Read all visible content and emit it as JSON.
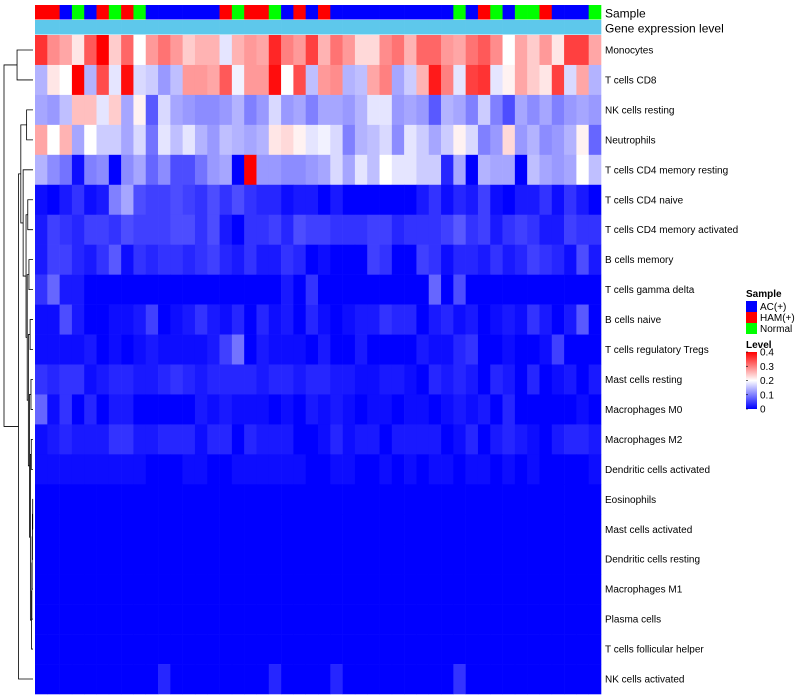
{
  "chart_data": {
    "type": "heatmap",
    "title": "",
    "annotation_tracks": [
      {
        "name": "Sample",
        "label": "Sample"
      },
      {
        "name": "Gene expression level",
        "label": "Gene expression level"
      }
    ],
    "sample_groups": [
      "H",
      "H",
      "A",
      "N",
      "A",
      "H",
      "N",
      "H",
      "N",
      "A",
      "A",
      "A",
      "A",
      "A",
      "A",
      "H",
      "N",
      "H",
      "H",
      "N",
      "A",
      "H",
      "A",
      "H",
      "A",
      "A",
      "A",
      "A",
      "A",
      "A",
      "A",
      "A",
      "A",
      "A",
      "N",
      "A",
      "H",
      "N",
      "A",
      "N",
      "N",
      "H",
      "A",
      "A",
      "A",
      "N"
    ],
    "group_colors": {
      "A": "#0000ff",
      "H": "#ff0000",
      "N": "#00ff00"
    },
    "gene_expression_color": "#5ec8eb",
    "rows": [
      "Monocytes",
      "T cells CD8",
      "NK cells resting",
      "Neutrophils",
      "T cells CD4 memory resting",
      "T cells CD4 naive",
      "T cells CD4 memory activated",
      "B cells memory",
      "T cells gamma delta",
      "B cells naive",
      "T cells regulatory  Tregs",
      "Mast cells resting",
      "Macrophages M0",
      "Macrophages M2",
      "Dendritic cells activated",
      "Eosinophils",
      "Mast cells activated",
      "Dendritic cells resting",
      "Macrophages M1",
      "Plasma cells",
      "T cells follicular helper",
      "NK cells activated"
    ],
    "values": [
      [
        0.36,
        0.29,
        0.27,
        0.22,
        0.33,
        0.4,
        0.24,
        0.32,
        0.2,
        0.28,
        0.31,
        0.28,
        0.24,
        0.26,
        0.26,
        0.18,
        0.26,
        0.28,
        0.27,
        0.37,
        0.3,
        0.28,
        0.35,
        0.26,
        0.31,
        0.28,
        0.23,
        0.23,
        0.29,
        0.31,
        0.26,
        0.32,
        0.32,
        0.28,
        0.27,
        0.31,
        0.33,
        0.29,
        0.2,
        0.27,
        0.24,
        0.28,
        0.22,
        0.35,
        0.35,
        0.27
      ],
      [
        0.14,
        0.22,
        0.2,
        0.4,
        0.14,
        0.34,
        0.18,
        0.39,
        0.17,
        0.16,
        0.12,
        0.15,
        0.28,
        0.28,
        0.27,
        0.33,
        0.19,
        0.28,
        0.28,
        0.39,
        0.2,
        0.34,
        0.15,
        0.28,
        0.29,
        0.14,
        0.15,
        0.27,
        0.3,
        0.13,
        0.16,
        0.26,
        0.38,
        0.3,
        0.18,
        0.35,
        0.36,
        0.18,
        0.21,
        0.27,
        0.24,
        0.22,
        0.35,
        0.17,
        0.27,
        0.14
      ],
      [
        0.13,
        0.12,
        0.15,
        0.25,
        0.25,
        0.18,
        0.24,
        0.13,
        0.21,
        0.07,
        0.17,
        0.13,
        0.12,
        0.11,
        0.11,
        0.12,
        0.14,
        0.1,
        0.12,
        0.17,
        0.12,
        0.13,
        0.1,
        0.13,
        0.13,
        0.12,
        0.14,
        0.18,
        0.18,
        0.12,
        0.13,
        0.12,
        0.07,
        0.14,
        0.13,
        0.1,
        0.16,
        0.1,
        0.06,
        0.13,
        0.11,
        0.13,
        0.1,
        0.12,
        0.13,
        0.12
      ],
      [
        0.27,
        0.2,
        0.26,
        0.13,
        0.2,
        0.16,
        0.16,
        0.13,
        0.17,
        0.09,
        0.18,
        0.15,
        0.18,
        0.14,
        0.12,
        0.15,
        0.14,
        0.13,
        0.14,
        0.22,
        0.23,
        0.21,
        0.18,
        0.19,
        0.17,
        0.1,
        0.14,
        0.15,
        0.17,
        0.11,
        0.18,
        0.16,
        0.13,
        0.16,
        0.21,
        0.17,
        0.1,
        0.12,
        0.23,
        0.12,
        0.14,
        0.11,
        0.12,
        0.14,
        0.21,
        0.08
      ],
      [
        0.14,
        0.11,
        0.09,
        0.01,
        0.1,
        0.11,
        0.0,
        0.11,
        0.13,
        0.08,
        0.11,
        0.06,
        0.06,
        0.09,
        0.12,
        0.13,
        0.0,
        0.41,
        0.12,
        0.12,
        0.11,
        0.11,
        0.12,
        0.13,
        0.17,
        0.13,
        0.18,
        0.15,
        0.2,
        0.18,
        0.18,
        0.16,
        0.16,
        0.03,
        0.13,
        0.0,
        0.14,
        0.13,
        0.13,
        0.0,
        0.15,
        0.13,
        0.12,
        0.13,
        0.2,
        0.15
      ],
      [
        0.01,
        0.0,
        0.02,
        0.04,
        0.01,
        0.02,
        0.1,
        0.13,
        0.06,
        0.05,
        0.05,
        0.06,
        0.05,
        0.04,
        0.06,
        0.04,
        0.06,
        0.04,
        0.03,
        0.03,
        0.01,
        0.02,
        0.02,
        0.0,
        0.02,
        0.0,
        0.0,
        0.0,
        0.0,
        0.0,
        0.0,
        0.02,
        0.04,
        0.01,
        0.03,
        0.02,
        0.05,
        0.01,
        0.0,
        0.02,
        0.02,
        0.04,
        0.01,
        0.04,
        0.02,
        0.0
      ],
      [
        0.02,
        0.05,
        0.04,
        0.03,
        0.05,
        0.05,
        0.04,
        0.06,
        0.05,
        0.05,
        0.05,
        0.06,
        0.06,
        0.04,
        0.06,
        0.02,
        0.0,
        0.04,
        0.04,
        0.05,
        0.03,
        0.06,
        0.05,
        0.05,
        0.04,
        0.04,
        0.04,
        0.05,
        0.05,
        0.03,
        0.04,
        0.04,
        0.04,
        0.05,
        0.07,
        0.04,
        0.05,
        0.02,
        0.04,
        0.05,
        0.04,
        0.02,
        0.02,
        0.05,
        0.04,
        0.04
      ],
      [
        0.02,
        0.05,
        0.05,
        0.03,
        0.02,
        0.04,
        0.07,
        0.01,
        0.04,
        0.03,
        0.04,
        0.04,
        0.03,
        0.04,
        0.05,
        0.03,
        0.02,
        0.04,
        0.02,
        0.02,
        0.04,
        0.03,
        0.0,
        0.01,
        0.0,
        0.0,
        0.0,
        0.05,
        0.04,
        0.0,
        0.0,
        0.05,
        0.04,
        0.01,
        0.03,
        0.03,
        0.02,
        0.04,
        0.02,
        0.03,
        0.05,
        0.04,
        0.03,
        0.01,
        0.06,
        0.02
      ],
      [
        0.04,
        0.08,
        0.02,
        0.02,
        0.0,
        0.0,
        0.0,
        0.0,
        0.0,
        0.0,
        0.0,
        0.0,
        0.0,
        0.0,
        0.0,
        0.0,
        0.0,
        0.0,
        0.0,
        0.0,
        0.02,
        0.0,
        0.04,
        0.0,
        0.0,
        0.0,
        0.0,
        0.0,
        0.0,
        0.0,
        0.0,
        0.0,
        0.08,
        0.0,
        0.06,
        0.0,
        0.0,
        0.0,
        0.0,
        0.0,
        0.0,
        0.0,
        0.0,
        0.0,
        0.0,
        0.0
      ],
      [
        0.01,
        0.01,
        0.06,
        0.02,
        0.0,
        0.0,
        0.01,
        0.01,
        0.02,
        0.05,
        0.0,
        0.01,
        0.02,
        0.04,
        0.02,
        0.01,
        0.03,
        0.0,
        0.03,
        0.01,
        0.02,
        0.0,
        0.03,
        0.01,
        0.0,
        0.01,
        0.02,
        0.02,
        0.04,
        0.03,
        0.03,
        0.0,
        0.02,
        0.03,
        0.01,
        0.02,
        0.0,
        0.01,
        0.02,
        0.01,
        0.04,
        0.02,
        0.0,
        0.02,
        0.07,
        0.0
      ],
      [
        0.01,
        0.01,
        0.01,
        0.01,
        0.02,
        0.0,
        0.01,
        0.0,
        0.01,
        0.02,
        0.01,
        0.01,
        0.01,
        0.01,
        0.02,
        0.05,
        0.09,
        0.0,
        0.02,
        0.01,
        0.01,
        0.01,
        0.0,
        0.02,
        0.0,
        0.0,
        0.02,
        0.0,
        0.0,
        0.0,
        0.0,
        0.02,
        0.01,
        0.01,
        0.03,
        0.04,
        0.0,
        0.0,
        0.01,
        0.0,
        0.0,
        0.01,
        0.05,
        0.0,
        0.0,
        0.0
      ],
      [
        0.04,
        0.03,
        0.04,
        0.04,
        0.01,
        0.02,
        0.03,
        0.03,
        0.02,
        0.02,
        0.03,
        0.04,
        0.03,
        0.02,
        0.03,
        0.03,
        0.03,
        0.03,
        0.02,
        0.03,
        0.03,
        0.02,
        0.03,
        0.03,
        0.02,
        0.02,
        0.01,
        0.01,
        0.02,
        0.02,
        0.01,
        0.0,
        0.03,
        0.02,
        0.03,
        0.02,
        0.0,
        0.03,
        0.02,
        0.0,
        0.03,
        0.0,
        0.01,
        0.02,
        0.0,
        0.02
      ],
      [
        0.08,
        0.01,
        0.04,
        0.0,
        0.03,
        0.0,
        0.02,
        0.02,
        0.0,
        0.0,
        0.0,
        0.0,
        0.0,
        0.02,
        0.01,
        0.02,
        0.01,
        0.01,
        0.01,
        0.0,
        0.01,
        0.0,
        0.02,
        0.01,
        0.02,
        0.01,
        0.0,
        0.01,
        0.01,
        0.0,
        0.01,
        0.01,
        0.0,
        0.01,
        0.02,
        0.01,
        0.02,
        0.0,
        0.03,
        0.0,
        0.0,
        0.0,
        0.0,
        0.0,
        0.01,
        0.0
      ],
      [
        0.01,
        0.02,
        0.03,
        0.02,
        0.02,
        0.02,
        0.04,
        0.04,
        0.02,
        0.02,
        0.03,
        0.03,
        0.03,
        0.01,
        0.03,
        0.03,
        0.0,
        0.03,
        0.02,
        0.02,
        0.02,
        0.0,
        0.0,
        0.01,
        0.03,
        0.01,
        0.02,
        0.02,
        0.0,
        0.02,
        0.02,
        0.02,
        0.02,
        0.0,
        0.01,
        0.03,
        0.0,
        0.02,
        0.03,
        0.02,
        0.01,
        0.0,
        0.02,
        0.03,
        0.03,
        0.02
      ],
      [
        0.01,
        0.01,
        0.01,
        0.01,
        0.01,
        0.01,
        0.01,
        0.01,
        0.01,
        0.0,
        0.0,
        0.0,
        0.01,
        0.01,
        0.0,
        0.0,
        0.01,
        0.01,
        0.01,
        0.01,
        0.01,
        0.01,
        0.0,
        0.0,
        0.01,
        0.01,
        0.0,
        0.0,
        0.01,
        0.0,
        0.01,
        0.0,
        0.01,
        0.01,
        0.0,
        0.01,
        0.01,
        0.0,
        0.01,
        0.0,
        0.01,
        0.0,
        0.0,
        0.0,
        0.0,
        0.01
      ],
      [
        0,
        0,
        0,
        0,
        0,
        0,
        0,
        0,
        0,
        0,
        0,
        0,
        0,
        0,
        0,
        0,
        0,
        0,
        0,
        0,
        0,
        0,
        0,
        0,
        0,
        0,
        0,
        0,
        0,
        0,
        0,
        0,
        0,
        0,
        0,
        0,
        0,
        0,
        0,
        0,
        0,
        0,
        0,
        0,
        0,
        0
      ],
      [
        0,
        0,
        0,
        0,
        0,
        0,
        0,
        0,
        0,
        0,
        0,
        0,
        0,
        0,
        0,
        0,
        0,
        0,
        0,
        0,
        0,
        0,
        0,
        0,
        0,
        0,
        0,
        0,
        0,
        0,
        0,
        0,
        0,
        0,
        0,
        0,
        0,
        0,
        0,
        0,
        0,
        0,
        0,
        0,
        0,
        0
      ],
      [
        0,
        0,
        0,
        0,
        0,
        0,
        0,
        0,
        0,
        0,
        0,
        0,
        0,
        0,
        0,
        0,
        0,
        0,
        0,
        0,
        0,
        0,
        0,
        0,
        0,
        0,
        0,
        0,
        0,
        0,
        0,
        0,
        0,
        0,
        0,
        0,
        0,
        0,
        0,
        0,
        0,
        0,
        0,
        0,
        0,
        0
      ],
      [
        0,
        0,
        0,
        0,
        0,
        0,
        0,
        0,
        0,
        0,
        0,
        0,
        0,
        0,
        0,
        0,
        0,
        0,
        0,
        0,
        0,
        0,
        0,
        0,
        0,
        0,
        0,
        0,
        0,
        0,
        0,
        0,
        0,
        0,
        0,
        0,
        0,
        0,
        0,
        0,
        0,
        0,
        0,
        0,
        0,
        0
      ],
      [
        0,
        0,
        0,
        0,
        0,
        0,
        0,
        0,
        0,
        0,
        0,
        0,
        0,
        0,
        0,
        0,
        0,
        0,
        0,
        0,
        0,
        0,
        0,
        0,
        0,
        0,
        0,
        0,
        0,
        0,
        0,
        0,
        0,
        0,
        0,
        0,
        0,
        0,
        0,
        0,
        0,
        0,
        0,
        0,
        0,
        0
      ],
      [
        0,
        0,
        0,
        0,
        0,
        0,
        0,
        0,
        0,
        0,
        0,
        0,
        0,
        0,
        0,
        0,
        0,
        0,
        0,
        0,
        0,
        0,
        0,
        0,
        0,
        0,
        0,
        0,
        0,
        0,
        0,
        0,
        0,
        0,
        0,
        0,
        0,
        0,
        0,
        0,
        0,
        0,
        0,
        0,
        0,
        0
      ],
      [
        0,
        0,
        0,
        0,
        0,
        0,
        0,
        0,
        0,
        0,
        0.03,
        0,
        0,
        0,
        0,
        0,
        0,
        0,
        0,
        0.03,
        0,
        0,
        0,
        0,
        0.03,
        0,
        0,
        0,
        0,
        0,
        0,
        0,
        0,
        0,
        0.04,
        0,
        0,
        0,
        0,
        0,
        0,
        0,
        0,
        0,
        0,
        0
      ]
    ],
    "legend": {
      "sample": {
        "title": "Sample",
        "items": [
          {
            "key": "A",
            "label": "AC(+)",
            "color": "#0000ff"
          },
          {
            "key": "H",
            "label": "HAM(+)",
            "color": "#ff0000"
          },
          {
            "key": "N",
            "label": "Normal",
            "color": "#00ff00"
          }
        ]
      },
      "level": {
        "title": "Level",
        "range": [
          0,
          0.4
        ],
        "ticks": [
          {
            "value": 0.4,
            "label": "0.4"
          },
          {
            "value": 0.3,
            "label": "0.3"
          },
          {
            "value": 0.2,
            "label": "0.2"
          },
          {
            "value": 0.1,
            "label": "0.1"
          },
          {
            "value": 0.0,
            "label": "0"
          }
        ],
        "colors": {
          "low": "#0000ff",
          "mid": "#ffffff",
          "high": "#ff0000",
          "mid_value": 0.2
        }
      }
    },
    "dendrogram": {
      "merges": [
        [
          -16,
          -17
        ],
        [
          1,
          -18
        ],
        [
          2,
          -19
        ],
        [
          3,
          -20
        ],
        [
          4,
          -21
        ],
        [
          -14,
          -15
        ],
        [
          6,
          5
        ],
        [
          -12,
          -13
        ],
        [
          8,
          7
        ],
        [
          -10,
          -11
        ],
        [
          10,
          9
        ],
        [
          -8,
          -9
        ],
        [
          12,
          11
        ],
        [
          -6,
          -7
        ],
        [
          14,
          13
        ],
        [
          -5,
          15
        ],
        [
          -3,
          -4
        ],
        [
          17,
          16
        ],
        [
          -1,
          -2
        ],
        [
          -22,
          18
        ],
        [
          19,
          20
        ]
      ],
      "heights": [
        0.01,
        0.02,
        0.03,
        0.04,
        0.05,
        0.06,
        0.09,
        0.07,
        0.12,
        0.1,
        0.16,
        0.14,
        0.2,
        0.18,
        0.24,
        0.34,
        0.22,
        0.42,
        0.55,
        0.5,
        1.0
      ]
    }
  }
}
